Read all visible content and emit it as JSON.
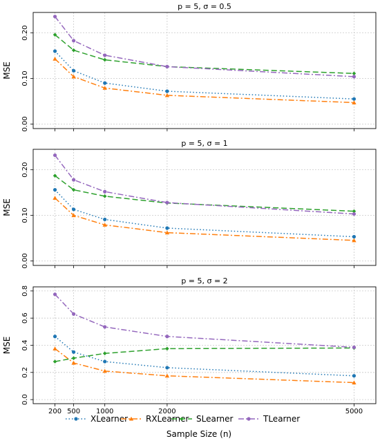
{
  "colors": {
    "XLearner": "#1f77b4",
    "RXLearner": "#ff7f0e",
    "SLearner": "#2ca02c",
    "TLearner": "#9467bd",
    "grid": "#c8c8c8"
  },
  "legend": {
    "placement": "bottom",
    "entries": [
      "XLearner",
      "RXLearner",
      "SLearner",
      "TLearner"
    ]
  },
  "xlabel": "Sample Size (n)",
  "chart_data": [
    {
      "type": "line",
      "title": "p = 5, σ = 0.5",
      "ylabel": "MSE",
      "x": [
        200,
        500,
        1000,
        2000,
        5000
      ],
      "xticks": [
        "200",
        "500",
        "1000",
        "2000",
        "5000"
      ],
      "yticks": [
        "0.00",
        "0.10",
        "0.20"
      ],
      "ytick_values": [
        0,
        0.1,
        0.2
      ],
      "ylim": [
        -0.01,
        0.245
      ],
      "grid": true,
      "series": [
        {
          "name": "XLearner",
          "values": [
            0.16,
            0.117,
            0.09,
            0.072,
            0.055
          ],
          "style": "dotted",
          "marker": "circle"
        },
        {
          "name": "RXLearner",
          "values": [
            0.143,
            0.104,
            0.079,
            0.063,
            0.047
          ],
          "style": "dashdot",
          "marker": "triangle"
        },
        {
          "name": "SLearner",
          "values": [
            0.196,
            0.162,
            0.141,
            0.126,
            0.111
          ],
          "style": "dashed",
          "marker": "diamond"
        },
        {
          "name": "TLearner",
          "values": [
            0.236,
            0.183,
            0.151,
            0.126,
            0.104
          ],
          "style": "dashdot",
          "marker": "circle"
        }
      ]
    },
    {
      "type": "line",
      "title": "p = 5, σ = 1",
      "ylabel": "MSE",
      "x": [
        200,
        500,
        1000,
        2000,
        5000
      ],
      "xticks": [
        "200",
        "500",
        "1000",
        "2000",
        "5000"
      ],
      "yticks": [
        "0.00",
        "0.10",
        "0.20"
      ],
      "ytick_values": [
        0,
        0.1,
        0.2
      ],
      "ylim": [
        -0.01,
        0.245
      ],
      "grid": true,
      "series": [
        {
          "name": "XLearner",
          "values": [
            0.156,
            0.113,
            0.091,
            0.072,
            0.053
          ],
          "style": "dotted",
          "marker": "circle"
        },
        {
          "name": "RXLearner",
          "values": [
            0.138,
            0.1,
            0.079,
            0.062,
            0.045
          ],
          "style": "dashdot",
          "marker": "triangle"
        },
        {
          "name": "SLearner",
          "values": [
            0.187,
            0.156,
            0.142,
            0.127,
            0.109
          ],
          "style": "dashed",
          "marker": "diamond"
        },
        {
          "name": "TLearner",
          "values": [
            0.232,
            0.178,
            0.152,
            0.128,
            0.103
          ],
          "style": "dashdot",
          "marker": "circle"
        }
      ]
    },
    {
      "type": "line",
      "title": "p = 5, σ = 2",
      "ylabel": "MSE",
      "x": [
        200,
        500,
        1000,
        2000,
        5000
      ],
      "xticks": [
        "200",
        "500",
        "1000",
        "2000",
        "5000"
      ],
      "yticks": [
        "0.0",
        "0.2",
        "0.4",
        "0.6",
        "0.8"
      ],
      "ytick_values": [
        0,
        0.2,
        0.4,
        0.6,
        0.8
      ],
      "ylim": [
        -0.03,
        0.83
      ],
      "grid": true,
      "series": [
        {
          "name": "XLearner",
          "values": [
            0.465,
            0.35,
            0.28,
            0.235,
            0.175
          ],
          "style": "dotted",
          "marker": "circle"
        },
        {
          "name": "RXLearner",
          "values": [
            0.375,
            0.27,
            0.21,
            0.175,
            0.125
          ],
          "style": "dashdot",
          "marker": "triangle"
        },
        {
          "name": "SLearner",
          "values": [
            0.28,
            0.305,
            0.34,
            0.375,
            0.38
          ],
          "style": "dashed",
          "marker": "diamond"
        },
        {
          "name": "TLearner",
          "values": [
            0.775,
            0.63,
            0.535,
            0.465,
            0.385
          ],
          "style": "dashdot",
          "marker": "circle"
        }
      ]
    }
  ]
}
